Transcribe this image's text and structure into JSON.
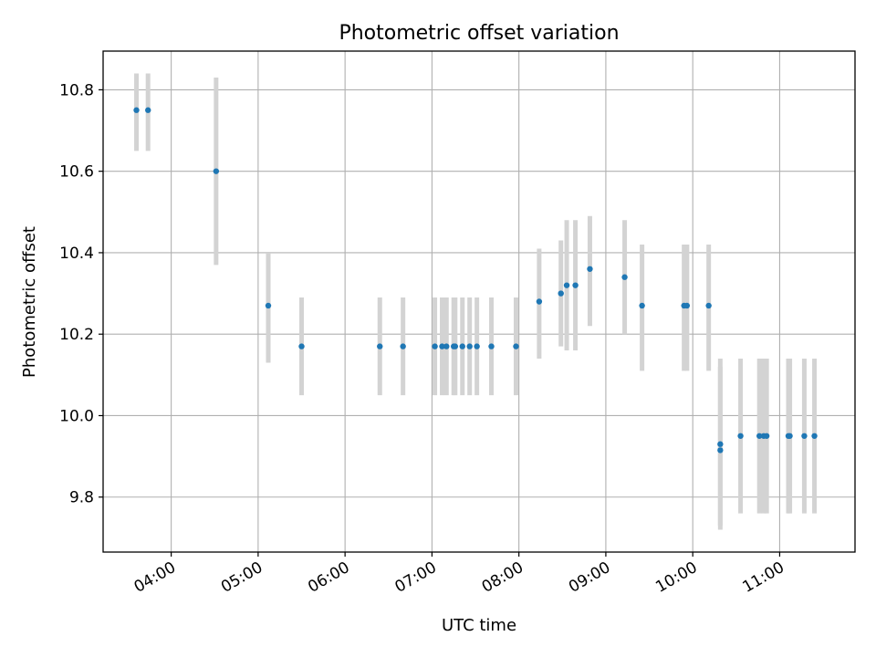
{
  "chart_data": {
    "type": "scatter",
    "title": "Photometric offset variation",
    "xlabel": "UTC time",
    "ylabel": "Photometric offset",
    "x_tick_labels": [
      "04:00",
      "05:00",
      "06:00",
      "07:00",
      "08:00",
      "09:00",
      "10:00",
      "11:00"
    ],
    "y_tick_labels": [
      "9.8",
      "10.0",
      "10.2",
      "10.4",
      "10.6",
      "10.8"
    ],
    "xlim": [
      "03:13",
      "11:52"
    ],
    "ylim": [
      9.665,
      10.895
    ],
    "grid": true,
    "error_bar_color": "#d3d3d3",
    "marker_color": "#1f77b4",
    "points": [
      {
        "x": "03:36",
        "y": 10.75,
        "yerr_low": 10.65,
        "yerr_high": 10.84
      },
      {
        "x": "03:44",
        "y": 10.75,
        "yerr_low": 10.65,
        "yerr_high": 10.84
      },
      {
        "x": "04:31",
        "y": 10.6,
        "yerr_low": 10.37,
        "yerr_high": 10.83
      },
      {
        "x": "05:07",
        "y": 10.27,
        "yerr_low": 10.13,
        "yerr_high": 10.4
      },
      {
        "x": "05:30",
        "y": 10.17,
        "yerr_low": 10.05,
        "yerr_high": 10.29
      },
      {
        "x": "06:24",
        "y": 10.17,
        "yerr_low": 10.05,
        "yerr_high": 10.29
      },
      {
        "x": "06:40",
        "y": 10.17,
        "yerr_low": 10.05,
        "yerr_high": 10.29
      },
      {
        "x": "07:02",
        "y": 10.17,
        "yerr_low": 10.05,
        "yerr_high": 10.29
      },
      {
        "x": "07:07",
        "y": 10.17,
        "yerr_low": 10.05,
        "yerr_high": 10.29
      },
      {
        "x": "07:10",
        "y": 10.17,
        "yerr_low": 10.05,
        "yerr_high": 10.29
      },
      {
        "x": "07:15",
        "y": 10.17,
        "yerr_low": 10.05,
        "yerr_high": 10.29
      },
      {
        "x": "07:16",
        "y": 10.17,
        "yerr_low": 10.05,
        "yerr_high": 10.29
      },
      {
        "x": "07:21",
        "y": 10.17,
        "yerr_low": 10.05,
        "yerr_high": 10.29
      },
      {
        "x": "07:26",
        "y": 10.17,
        "yerr_low": 10.05,
        "yerr_high": 10.29
      },
      {
        "x": "07:31",
        "y": 10.17,
        "yerr_low": 10.05,
        "yerr_high": 10.29
      },
      {
        "x": "07:41",
        "y": 10.17,
        "yerr_low": 10.05,
        "yerr_high": 10.29
      },
      {
        "x": "07:58",
        "y": 10.17,
        "yerr_low": 10.05,
        "yerr_high": 10.29
      },
      {
        "x": "08:14",
        "y": 10.28,
        "yerr_low": 10.14,
        "yerr_high": 10.41
      },
      {
        "x": "08:29",
        "y": 10.3,
        "yerr_low": 10.17,
        "yerr_high": 10.43
      },
      {
        "x": "08:33",
        "y": 10.32,
        "yerr_low": 10.16,
        "yerr_high": 10.48
      },
      {
        "x": "08:39",
        "y": 10.32,
        "yerr_low": 10.16,
        "yerr_high": 10.48
      },
      {
        "x": "08:49",
        "y": 10.36,
        "yerr_low": 10.22,
        "yerr_high": 10.49
      },
      {
        "x": "09:13",
        "y": 10.34,
        "yerr_low": 10.2,
        "yerr_high": 10.48
      },
      {
        "x": "09:25",
        "y": 10.27,
        "yerr_low": 10.11,
        "yerr_high": 10.42
      },
      {
        "x": "09:54",
        "y": 10.27,
        "yerr_low": 10.11,
        "yerr_high": 10.42
      },
      {
        "x": "09:56",
        "y": 10.27,
        "yerr_low": 10.11,
        "yerr_high": 10.42
      },
      {
        "x": "10:11",
        "y": 10.27,
        "yerr_low": 10.11,
        "yerr_high": 10.42
      },
      {
        "x": "10:19",
        "y": 9.93,
        "yerr_low": 9.73,
        "yerr_high": 10.14
      },
      {
        "x": "10:19",
        "y": 9.915,
        "yerr_low": 9.72,
        "yerr_high": 10.12
      },
      {
        "x": "10:33",
        "y": 9.95,
        "yerr_low": 9.76,
        "yerr_high": 10.14
      },
      {
        "x": "10:46",
        "y": 9.95,
        "yerr_low": 9.76,
        "yerr_high": 10.14
      },
      {
        "x": "10:49",
        "y": 9.95,
        "yerr_low": 9.76,
        "yerr_high": 10.14
      },
      {
        "x": "10:51",
        "y": 9.95,
        "yerr_low": 9.76,
        "yerr_high": 10.14
      },
      {
        "x": "11:06",
        "y": 9.95,
        "yerr_low": 9.76,
        "yerr_high": 10.14
      },
      {
        "x": "11:07",
        "y": 9.95,
        "yerr_low": 9.76,
        "yerr_high": 10.14
      },
      {
        "x": "11:17",
        "y": 9.95,
        "yerr_low": 9.76,
        "yerr_high": 10.14
      },
      {
        "x": "11:24",
        "y": 9.95,
        "yerr_low": 9.76,
        "yerr_high": 10.14
      }
    ]
  }
}
